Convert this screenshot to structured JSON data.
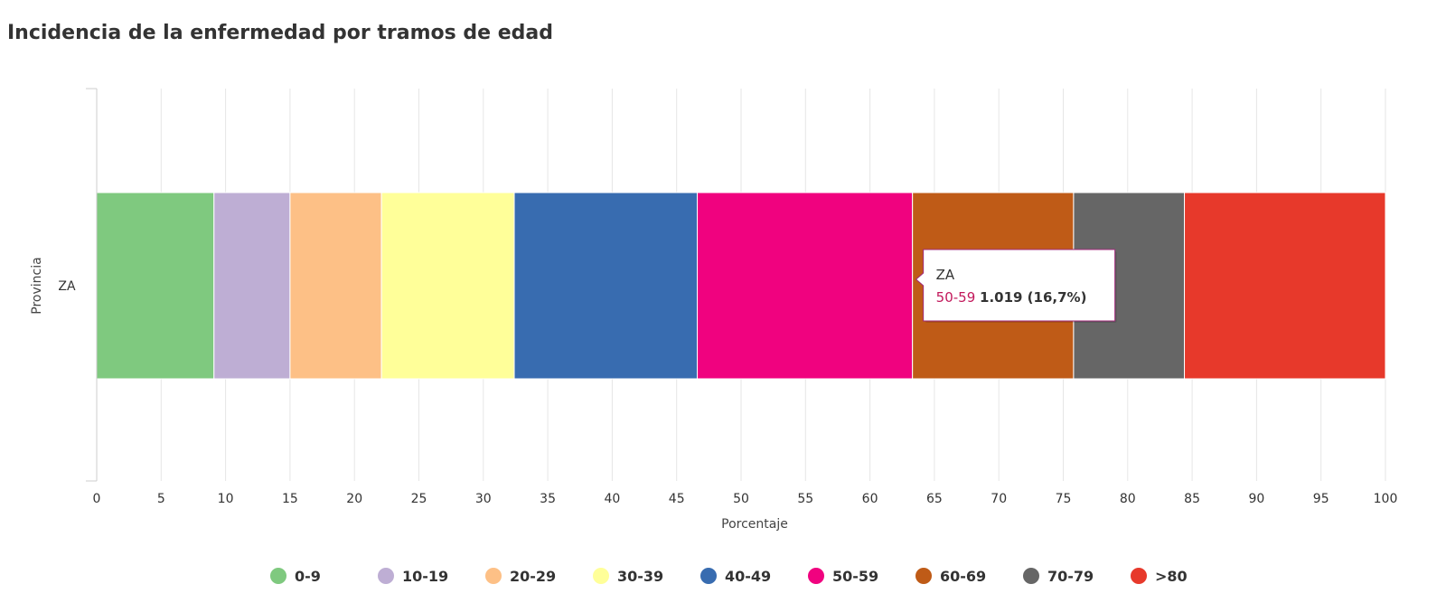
{
  "chart_data": {
    "type": "bar",
    "orientation": "horizontal",
    "stacked": true,
    "title": "Incidencia de la enfermedad por tramos de edad",
    "xlabel": "Porcentaje",
    "ylabel": "Provincia",
    "categories": [
      "ZA"
    ],
    "xlim": [
      0,
      100
    ],
    "xticks": [
      "0",
      "5",
      "10",
      "15",
      "20",
      "25",
      "30",
      "35",
      "40",
      "45",
      "50",
      "55",
      "60",
      "65",
      "70",
      "75",
      "80",
      "85",
      "90",
      "95",
      "100"
    ],
    "grid": true,
    "legend_position": "bottom",
    "series": [
      {
        "name": "0-9",
        "color": "#7fc97f",
        "values": [
          9.1
        ]
      },
      {
        "name": "10-19",
        "color": "#beaed4",
        "values": [
          5.9
        ]
      },
      {
        "name": "20-29",
        "color": "#fdc086",
        "values": [
          7.1
        ]
      },
      {
        "name": "30-39",
        "color": "#ffff99",
        "values": [
          10.3
        ]
      },
      {
        "name": "40-49",
        "color": "#386cb0",
        "values": [
          14.2
        ]
      },
      {
        "name": "50-59",
        "color": "#f0027f",
        "values": [
          16.7
        ]
      },
      {
        "name": "60-69",
        "color": "#bf5b17",
        "values": [
          12.5
        ]
      },
      {
        "name": "70-79",
        "color": "#666666",
        "values": [
          8.6
        ]
      },
      {
        "name": ">80",
        "color": "#e7392b",
        "values": [
          15.6
        ]
      }
    ],
    "tooltip": {
      "category": "ZA",
      "series": "50-59",
      "value_text": "1.019 (16,7%)",
      "series_color": "#c2185b",
      "border_color": "#a0287a"
    }
  }
}
